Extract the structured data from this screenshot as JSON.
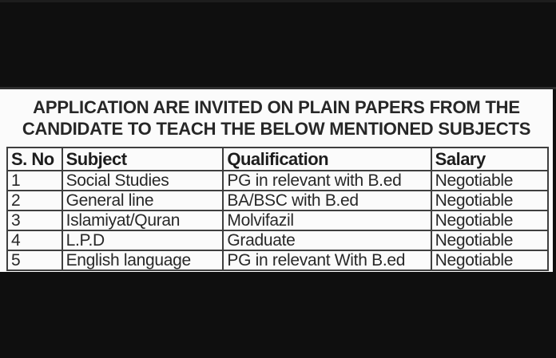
{
  "notice": {
    "title_line1": "APPLICATION ARE INVITED ON PLAIN PAPERS FROM THE",
    "title_line2": "CANDIDATE TO TEACH THE BELOW MENTIONED SUBJECTS"
  },
  "table": {
    "headers": {
      "sno": "S. No",
      "subject": "Subject",
      "qualification": "Qualification",
      "salary": "Salary"
    },
    "rows": [
      [
        "1",
        "Social Studies",
        "PG in relevant with B.ed",
        "Negotiable"
      ],
      [
        "2",
        "General line",
        "BA/BSC with B.ed",
        "Negotiable"
      ],
      [
        "3",
        "Islamiyat/Quran",
        "Molvifazil",
        "Negotiable"
      ],
      [
        "4",
        "L.P.D",
        "Graduate",
        "Negotiable"
      ],
      [
        "5",
        "English language",
        "PG in relevant With B.ed",
        "Negotiable"
      ]
    ]
  },
  "colors": {
    "letterbox_bar": "#0f0f0f",
    "paper_background": "#fbfbfb",
    "table_border": "#3f3f3f",
    "title_text": "#272727",
    "cell_text": "#282828"
  }
}
